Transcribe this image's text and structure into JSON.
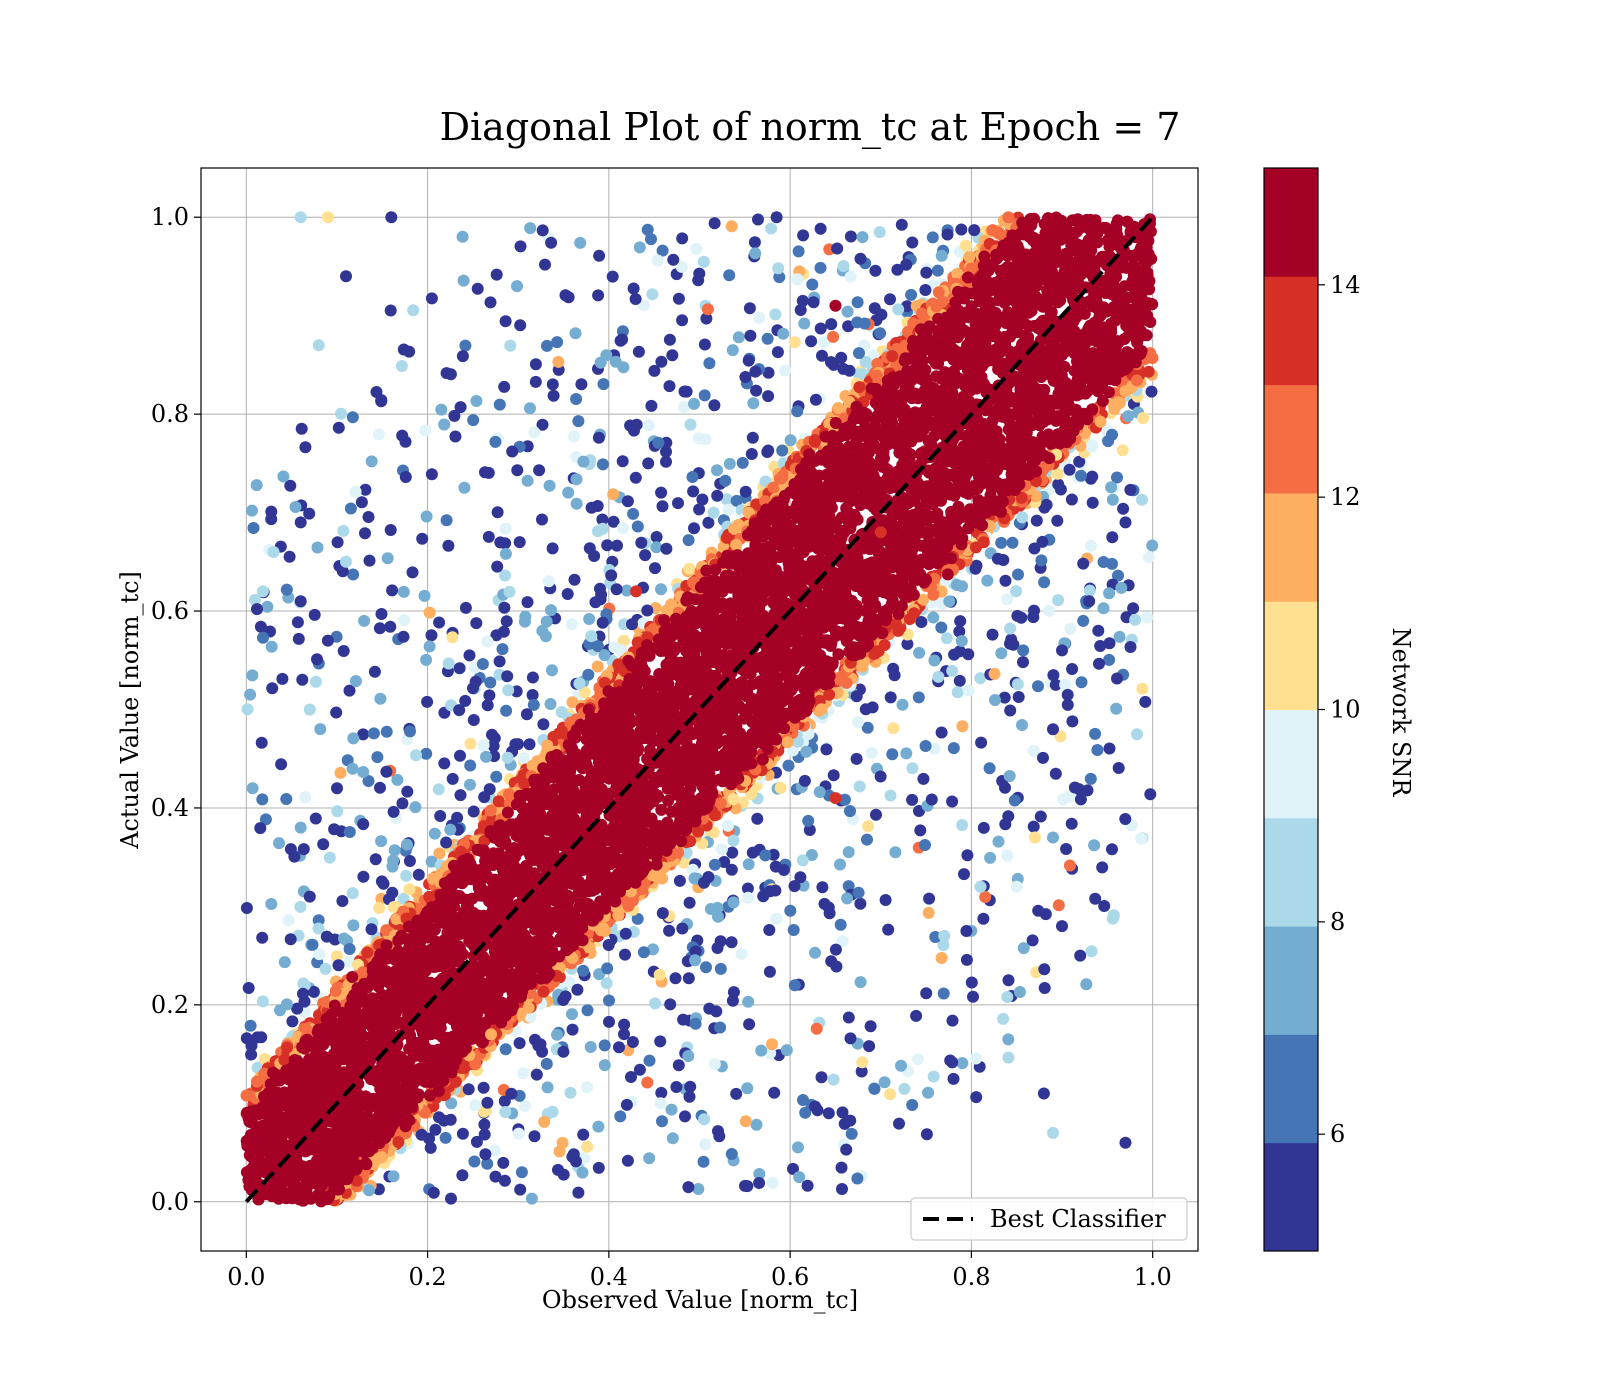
{
  "chart_data": {
    "type": "scatter",
    "title": "Diagonal Plot of norm_tc at Epoch = 7",
    "xlabel": "Observed Value [norm_tc]",
    "ylabel": "Actual Value [norm_tc]",
    "xlim": [
      -0.05,
      1.05
    ],
    "ylim": [
      -0.05,
      1.05
    ],
    "xticks": [
      "0.0",
      "0.2",
      "0.4",
      "0.6",
      "0.8",
      "1.0"
    ],
    "yticks": [
      "0.0",
      "0.2",
      "0.4",
      "0.6",
      "0.8",
      "1.0"
    ],
    "grid": true,
    "legend": {
      "placement": "lower-right",
      "entries": [
        "Best Classifier"
      ]
    },
    "reference_line": {
      "name": "Best Classifier",
      "x": [
        0,
        1
      ],
      "y": [
        0,
        1
      ],
      "style": "dashed",
      "color": "#000000"
    },
    "colorbar": {
      "label": "Network SNR",
      "range": [
        4.9,
        15.1
      ],
      "ticks": [
        "6",
        "8",
        "10",
        "12",
        "14"
      ],
      "colors": [
        "#313695",
        "#4575b4",
        "#74add1",
        "#abd9e9",
        "#e0f3f8",
        "#fee090",
        "#fdae61",
        "#f46d43",
        "#d73027",
        "#a50026"
      ]
    },
    "approx_structure": {
      "description": "dense band of high-SNR points around y = x, with low-SNR points scattered away from the diagonal",
      "band_half_width_at_low_y": 0.09,
      "band_half_width_at_high_y": 0.15
    },
    "sample_points": [
      {
        "x": 0.06,
        "y": 1.0,
        "snr": 8
      },
      {
        "x": 0.09,
        "y": 1.0,
        "snr": 10
      },
      {
        "x": 0.16,
        "y": 1.0,
        "snr": 5
      },
      {
        "x": 0.03,
        "y": 0.66,
        "snr": 8
      },
      {
        "x": 0.06,
        "y": 0.69,
        "snr": 5
      },
      {
        "x": 0.06,
        "y": 0.61,
        "snr": 5
      },
      {
        "x": 0.08,
        "y": 0.87,
        "snr": 8
      },
      {
        "x": 0.11,
        "y": 0.94,
        "snr": 5
      },
      {
        "x": 0.07,
        "y": 0.5,
        "snr": 8
      },
      {
        "x": 0.06,
        "y": 0.38,
        "snr": 7
      },
      {
        "x": 0.07,
        "y": 0.31,
        "snr": 5
      },
      {
        "x": 0.09,
        "y": 0.57,
        "snr": 5
      },
      {
        "x": 0.11,
        "y": 0.65,
        "snr": 8
      },
      {
        "x": 0.13,
        "y": 0.59,
        "snr": 7
      },
      {
        "x": 0.1,
        "y": 0.42,
        "snr": 5
      },
      {
        "x": 0.97,
        "y": 0.69,
        "snr": 5
      },
      {
        "x": 0.97,
        "y": 0.06,
        "snr": 5
      },
      {
        "x": 0.93,
        "y": 0.61,
        "snr": 5
      },
      {
        "x": 0.94,
        "y": 0.58,
        "snr": 5
      },
      {
        "x": 0.9,
        "y": 0.28,
        "snr": 5
      },
      {
        "x": 0.92,
        "y": 0.25,
        "snr": 5
      },
      {
        "x": 0.87,
        "y": 0.37,
        "snr": 11
      },
      {
        "x": 0.89,
        "y": 0.37,
        "snr": 7
      },
      {
        "x": 0.89,
        "y": 0.07,
        "snr": 8
      },
      {
        "x": 0.88,
        "y": 0.11,
        "snr": 5
      },
      {
        "x": 0.9,
        "y": 0.56,
        "snr": 5
      },
      {
        "x": 0.89,
        "y": 0.48,
        "snr": 5
      },
      {
        "x": 0.65,
        "y": 0.41,
        "snr": 14
      },
      {
        "x": 0.58,
        "y": 0.16,
        "snr": 12
      },
      {
        "x": 0.43,
        "y": 0.62,
        "snr": 14
      },
      {
        "x": 0.65,
        "y": 0.91,
        "snr": 15
      },
      {
        "x": 0.7,
        "y": 0.68,
        "snr": 14
      },
      {
        "x": 0.27,
        "y": 0.17,
        "snr": 12
      },
      {
        "x": 0.81,
        "y": 0.32,
        "snr": 8
      },
      {
        "x": 0.77,
        "y": 0.27,
        "snr": 8
      },
      {
        "x": 0.85,
        "y": 0.32,
        "snr": 9
      }
    ]
  }
}
